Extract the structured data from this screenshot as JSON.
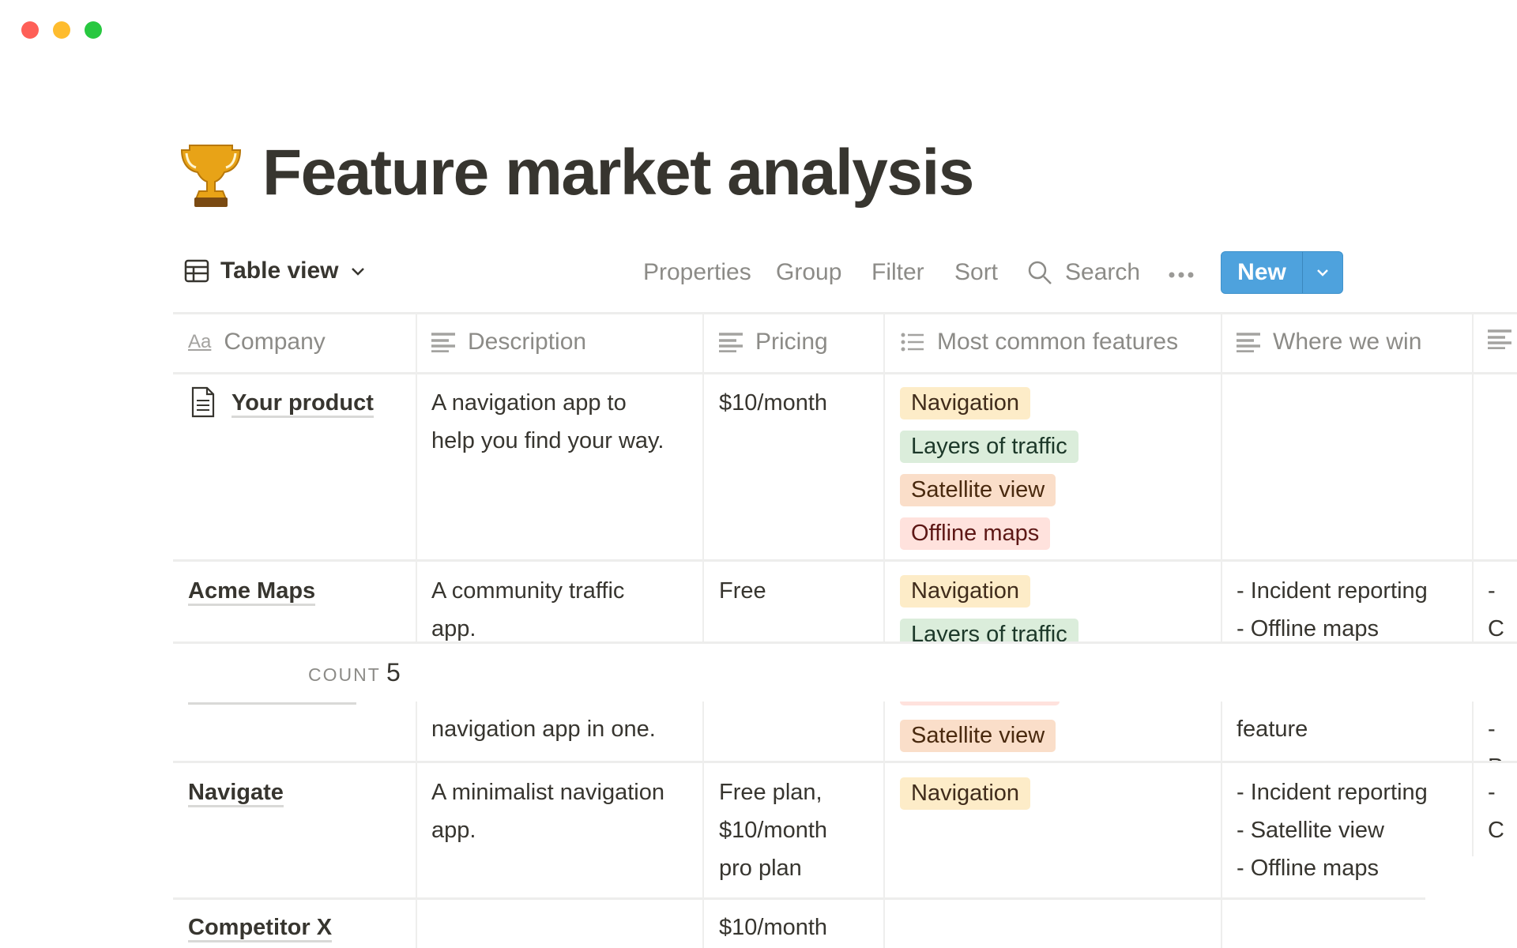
{
  "window": {
    "controls": [
      "close",
      "minimize",
      "maximize"
    ]
  },
  "page": {
    "icon": "trophy-icon",
    "title": "Feature market analysis"
  },
  "toolbar": {
    "view_label": "Table view",
    "properties": "Properties",
    "group": "Group",
    "filter": "Filter",
    "sort": "Sort",
    "search": "Search",
    "new": "New"
  },
  "columns": [
    "Company",
    "Description",
    "Pricing",
    "Most common features",
    "Where we win"
  ],
  "tag_colors": {
    "Navigation": [
      "#fdecc8",
      "#402c1b"
    ],
    "Layers of traffic": [
      "#dbeddb",
      "#1c3829"
    ],
    "Satellite view": [
      "#fadec9",
      "#49290e"
    ],
    "Offline maps": [
      "#ffe2dd",
      "#5d1715"
    ]
  },
  "rows": [
    {
      "company": "Your product",
      "description": "A navigation app to\nhelp you find your way.",
      "pricing": "$10/month",
      "features": [
        "Navigation",
        "Layers of traffic",
        "Satellite view",
        "Offline maps"
      ],
      "win": "",
      "extra": ""
    },
    {
      "company": "Acme Maps",
      "description": "A community traffic\napp.",
      "pricing": "Free",
      "features": [
        "Navigation",
        "Layers of traffic"
      ],
      "win": "- Incident reporting\n- Offline maps",
      "extra": "- C"
    },
    {
      "company": "",
      "description": "navigation app in one.",
      "pricing": "",
      "features": [
        "Satellite view"
      ],
      "win": "feature",
      "extra": "- P"
    },
    {
      "company": "Navigate",
      "description": "A minimalist navigation\napp.",
      "pricing": "Free plan,\n$10/month\npro plan",
      "features": [
        "Navigation"
      ],
      "win": "- Incident reporting\n- Satellite view\n- Offline maps",
      "extra": "- C"
    },
    {
      "company": "Competitor X",
      "description": "",
      "pricing": "$10/month",
      "features": [],
      "win": "",
      "extra": ""
    }
  ],
  "footer": {
    "count_label": "COUNT",
    "count_value": "5"
  }
}
